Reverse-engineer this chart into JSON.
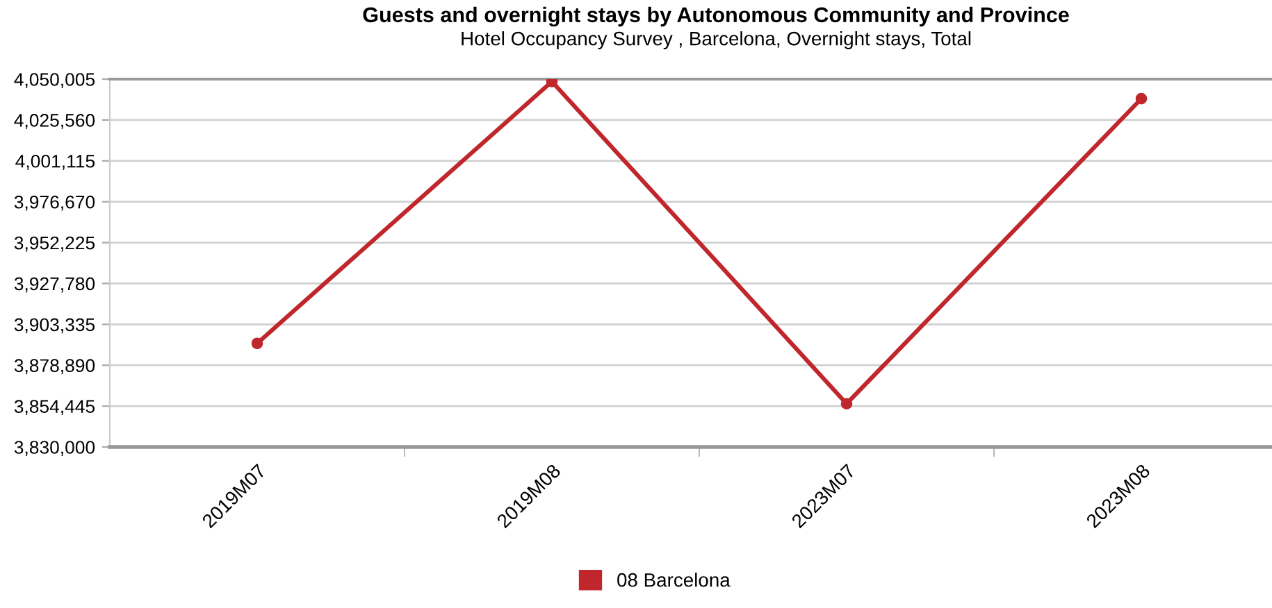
{
  "chart_data": {
    "type": "line",
    "title": "Guests and overnight stays by Autonomous Community and Province",
    "subtitle": "Hotel Occupancy Survey , Barcelona, Overnight stays, Total",
    "categories": [
      "2019M07",
      "2019M08",
      "2023M07",
      "2023M08"
    ],
    "series": [
      {
        "name": "08 Barcelona",
        "color": "#c0272d",
        "values": [
          3891950,
          4048540,
          3855850,
          4038300
        ]
      }
    ],
    "ylim": [
      3830000,
      4050005
    ],
    "yticks": [
      {
        "value": 3830000,
        "label": "3,830,000"
      },
      {
        "value": 3854445,
        "label": "3,854,445"
      },
      {
        "value": 3878890,
        "label": "3,878,890"
      },
      {
        "value": 3903335,
        "label": "3,903,335"
      },
      {
        "value": 3927780,
        "label": "3,927,780"
      },
      {
        "value": 3952225,
        "label": "3,952,225"
      },
      {
        "value": 3976670,
        "label": "3,976,670"
      },
      {
        "value": 4001115,
        "label": "4,001,115"
      },
      {
        "value": 4025560,
        "label": "4,025,560"
      },
      {
        "value": 4050005,
        "label": "4,050,005"
      }
    ],
    "grid": "y",
    "legend": "bottom",
    "marker": "circle",
    "line_style": "solid"
  }
}
